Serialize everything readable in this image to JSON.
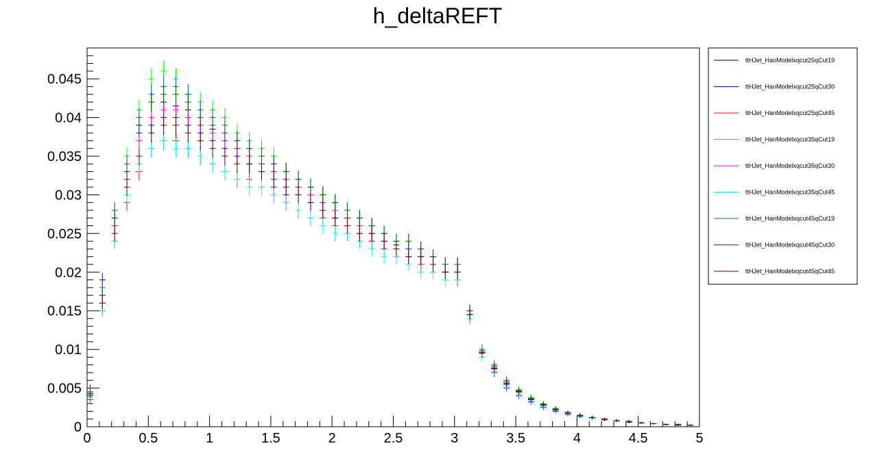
{
  "chart_data": {
    "type": "scatter",
    "title": "h_deltaREFT",
    "xlabel": "",
    "ylabel": "",
    "xlim": [
      0,
      5
    ],
    "ylim": [
      0,
      0.049
    ],
    "x_ticks": [
      {
        "value": 0,
        "label": "0"
      },
      {
        "value": 0.5,
        "label": "0.5"
      },
      {
        "value": 1,
        "label": "1"
      },
      {
        "value": 1.5,
        "label": "1.5"
      },
      {
        "value": 2,
        "label": "2"
      },
      {
        "value": 2.5,
        "label": "2.5"
      },
      {
        "value": 3,
        "label": "3"
      },
      {
        "value": 3.5,
        "label": "3.5"
      },
      {
        "value": 4,
        "label": "4"
      },
      {
        "value": 4.5,
        "label": "4.5"
      },
      {
        "value": 5,
        "label": "5"
      }
    ],
    "y_ticks": [
      {
        "value": 0,
        "label": "0"
      },
      {
        "value": 0.005,
        "label": "0.005"
      },
      {
        "value": 0.01,
        "label": "0.01"
      },
      {
        "value": 0.015,
        "label": "0.015"
      },
      {
        "value": 0.02,
        "label": "0.02"
      },
      {
        "value": 0.025,
        "label": "0.025"
      },
      {
        "value": 0.03,
        "label": "0.03"
      },
      {
        "value": 0.035,
        "label": "0.035"
      },
      {
        "value": 0.04,
        "label": "0.04"
      },
      {
        "value": 0.045,
        "label": "0.045"
      }
    ],
    "bin_width": 0.05,
    "x": [
      0.025,
      0.125,
      0.225,
      0.325,
      0.425,
      0.525,
      0.625,
      0.725,
      0.825,
      0.925,
      1.025,
      1.125,
      1.225,
      1.325,
      1.425,
      1.525,
      1.625,
      1.725,
      1.825,
      1.925,
      2.025,
      2.125,
      2.225,
      2.325,
      2.425,
      2.525,
      2.625,
      2.725,
      2.825,
      2.925,
      3.025,
      3.125,
      3.225,
      3.325,
      3.425,
      3.525,
      3.625,
      3.725,
      3.825,
      3.925,
      4.025,
      4.125,
      4.225,
      4.325,
      4.425,
      4.525,
      4.625,
      4.725,
      4.825,
      4.925
    ],
    "legend_position": "right",
    "series": [
      {
        "name": "ttHJet_HanModelxqcut25qCut19",
        "color": "#000000",
        "values": [
          0.0045,
          0.017,
          0.026,
          0.032,
          0.039,
          0.042,
          0.042,
          0.0415,
          0.041,
          0.039,
          0.0385,
          0.037,
          0.036,
          0.035,
          0.034,
          0.033,
          0.032,
          0.031,
          0.03,
          0.029,
          0.028,
          0.027,
          0.026,
          0.025,
          0.024,
          0.0235,
          0.023,
          0.022,
          0.021,
          0.021,
          0.02,
          0.0145,
          0.0095,
          0.0075,
          0.0055,
          0.0045,
          0.0035,
          0.0028,
          0.0022,
          0.0018,
          0.0015,
          0.0012,
          0.001,
          0.0008,
          0.0007,
          0.0005,
          0.0004,
          0.0003,
          0.0003,
          0.0002
        ]
      },
      {
        "name": "ttHJet_HanModelxqcut25qCut30",
        "color": "#0000ff",
        "values": [
          0.005,
          0.019,
          0.027,
          0.033,
          0.038,
          0.039,
          0.04,
          0.04,
          0.039,
          0.038,
          0.037,
          0.036,
          0.035,
          0.034,
          0.033,
          0.031,
          0.03,
          0.03,
          0.029,
          0.028,
          0.027,
          0.026,
          0.025,
          0.024,
          0.023,
          0.023,
          0.022,
          0.021,
          0.021,
          0.02,
          0.019,
          0.014,
          0.009,
          0.007,
          0.005,
          0.004,
          0.0032,
          0.0025,
          0.002,
          0.0016,
          0.0013,
          0.0011,
          0.0009,
          0.0007,
          0.0006,
          0.0005,
          0.0004,
          0.0003,
          0.0002,
          0.0002
        ]
      },
      {
        "name": "ttHJet_HanModelxqcut25qCut45",
        "color": "#ff0000",
        "values": [
          0.0035,
          0.015,
          0.024,
          0.029,
          0.033,
          0.036,
          0.037,
          0.037,
          0.036,
          0.035,
          0.034,
          0.033,
          0.032,
          0.032,
          0.031,
          0.03,
          0.029,
          0.028,
          0.027,
          0.027,
          0.026,
          0.025,
          0.024,
          0.024,
          0.023,
          0.022,
          0.022,
          0.021,
          0.02,
          0.02,
          0.019,
          0.0145,
          0.0098,
          0.0078,
          0.0058,
          0.0046,
          0.0036,
          0.0029,
          0.0023,
          0.0018,
          0.0015,
          0.0012,
          0.001,
          0.0008,
          0.0006,
          0.0005,
          0.0004,
          0.0003,
          0.0003,
          0.0002
        ]
      },
      {
        "name": "ttHJet_HanModelxqcut35qCut19",
        "color": "#00ff00",
        "values": [
          0.004,
          0.017,
          0.028,
          0.035,
          0.041,
          0.045,
          0.046,
          0.045,
          0.043,
          0.042,
          0.041,
          0.04,
          0.038,
          0.037,
          0.036,
          0.035,
          0.033,
          0.032,
          0.031,
          0.03,
          0.029,
          0.028,
          0.027,
          0.026,
          0.025,
          0.024,
          0.024,
          0.023,
          0.022,
          0.021,
          0.021,
          0.015,
          0.01,
          0.008,
          0.006,
          0.0048,
          0.0038,
          0.003,
          0.0024,
          0.0019,
          0.0015,
          0.0012,
          0.001,
          0.0008,
          0.0007,
          0.0005,
          0.0004,
          0.0003,
          0.0003,
          0.0002
        ]
      },
      {
        "name": "ttHJet_HanModelxqcut35qCut30",
        "color": "#ff00ff",
        "values": [
          0.0042,
          0.016,
          0.026,
          0.032,
          0.037,
          0.04,
          0.041,
          0.041,
          0.04,
          0.039,
          0.038,
          0.037,
          0.036,
          0.035,
          0.034,
          0.033,
          0.032,
          0.031,
          0.03,
          0.029,
          0.028,
          0.027,
          0.026,
          0.025,
          0.024,
          0.024,
          0.023,
          0.022,
          0.022,
          0.021,
          0.021,
          0.015,
          0.0096,
          0.0076,
          0.0056,
          0.0045,
          0.0035,
          0.0028,
          0.0022,
          0.0018,
          0.0014,
          0.0012,
          0.0009,
          0.0008,
          0.0006,
          0.0005,
          0.0004,
          0.0003,
          0.0002,
          0.0002
        ]
      },
      {
        "name": "ttHJet_HanModelxqcut35qCut45",
        "color": "#00ffff",
        "values": [
          0.0038,
          0.015,
          0.024,
          0.03,
          0.034,
          0.036,
          0.037,
          0.036,
          0.036,
          0.035,
          0.034,
          0.033,
          0.032,
          0.031,
          0.031,
          0.03,
          0.029,
          0.028,
          0.027,
          0.026,
          0.025,
          0.025,
          0.024,
          0.023,
          0.022,
          0.022,
          0.021,
          0.02,
          0.02,
          0.019,
          0.019,
          0.014,
          0.009,
          0.0072,
          0.0053,
          0.0042,
          0.0033,
          0.0027,
          0.0021,
          0.0017,
          0.0013,
          0.0011,
          0.0009,
          0.0007,
          0.0006,
          0.0005,
          0.0004,
          0.0003,
          0.0002,
          0.0002
        ]
      },
      {
        "name": "ttHJet_HanModelxqcut45qCut19",
        "color": "#006699",
        "values": [
          0.0045,
          0.018,
          0.028,
          0.034,
          0.04,
          0.043,
          0.044,
          0.044,
          0.043,
          0.041,
          0.04,
          0.039,
          0.037,
          0.036,
          0.035,
          0.034,
          0.033,
          0.032,
          0.031,
          0.03,
          0.029,
          0.028,
          0.027,
          0.026,
          0.025,
          0.024,
          0.023,
          0.023,
          0.022,
          0.021,
          0.021,
          0.015,
          0.01,
          0.008,
          0.006,
          0.0047,
          0.0037,
          0.0029,
          0.0023,
          0.0018,
          0.0015,
          0.0012,
          0.001,
          0.0008,
          0.0007,
          0.0005,
          0.0004,
          0.0003,
          0.0003,
          0.0002
        ]
      },
      {
        "name": "ttHJet_HanModelxqcut45qCut30",
        "color": "#006600",
        "values": [
          0.0043,
          0.017,
          0.027,
          0.033,
          0.039,
          0.042,
          0.043,
          0.043,
          0.042,
          0.04,
          0.039,
          0.038,
          0.037,
          0.036,
          0.035,
          0.034,
          0.033,
          0.032,
          0.031,
          0.03,
          0.029,
          0.028,
          0.027,
          0.026,
          0.025,
          0.024,
          0.024,
          0.023,
          0.022,
          0.021,
          0.021,
          0.015,
          0.0098,
          0.0078,
          0.0058,
          0.0046,
          0.0036,
          0.0029,
          0.0023,
          0.0018,
          0.0015,
          0.0012,
          0.001,
          0.0008,
          0.0007,
          0.0005,
          0.0004,
          0.0003,
          0.0003,
          0.0002
        ]
      },
      {
        "name": "ttHJet_HanModelxqcut45qCut45",
        "color": "#660000",
        "values": [
          0.004,
          0.016,
          0.025,
          0.031,
          0.035,
          0.038,
          0.039,
          0.039,
          0.038,
          0.037,
          0.036,
          0.035,
          0.034,
          0.034,
          0.033,
          0.032,
          0.031,
          0.03,
          0.029,
          0.028,
          0.027,
          0.026,
          0.025,
          0.025,
          0.024,
          0.023,
          0.022,
          0.022,
          0.021,
          0.02,
          0.02,
          0.0145,
          0.0096,
          0.0076,
          0.0056,
          0.0045,
          0.0035,
          0.0028,
          0.0022,
          0.0018,
          0.0014,
          0.0012,
          0.0009,
          0.0008,
          0.0006,
          0.0005,
          0.0004,
          0.0003,
          0.0002,
          0.0002
        ]
      }
    ]
  }
}
